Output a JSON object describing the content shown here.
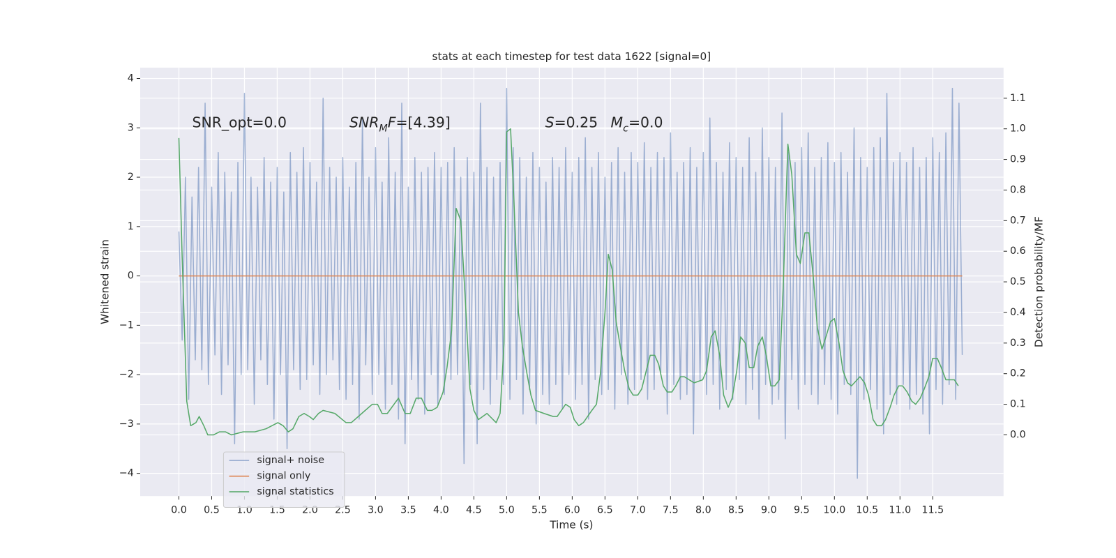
{
  "chart_data": {
    "type": "line",
    "title": "stats at each timestep for test data 1622 [signal=0]",
    "xlabel": "Time (s)",
    "ylabel": "Whitened strain",
    "y2label": "Detection probability/MF",
    "xlim": [
      -0.59,
      12.58
    ],
    "ylim": [
      -4.46,
      4.22
    ],
    "y2lim": [
      -0.2,
      1.2
    ],
    "grid": true,
    "legend": "lower left",
    "xticks": [
      {
        "value": 0,
        "label": "0.0"
      },
      {
        "value": 0.5,
        "label": "0.5"
      },
      {
        "value": 1,
        "label": "1.0"
      },
      {
        "value": 1.5,
        "label": "1.5"
      },
      {
        "value": 2,
        "label": "2.0"
      },
      {
        "value": 2.5,
        "label": "2.5"
      },
      {
        "value": 3,
        "label": "3.0"
      },
      {
        "value": 3.5,
        "label": "3.5"
      },
      {
        "value": 4,
        "label": "4.0"
      },
      {
        "value": 4.5,
        "label": "4.5"
      },
      {
        "value": 5,
        "label": "5.0"
      },
      {
        "value": 5.5,
        "label": "5.5"
      },
      {
        "value": 6,
        "label": "6.0"
      },
      {
        "value": 6.5,
        "label": "6.5"
      },
      {
        "value": 7,
        "label": "7.0"
      },
      {
        "value": 7.5,
        "label": "7.5"
      },
      {
        "value": 8,
        "label": "8.0"
      },
      {
        "value": 8.5,
        "label": "8.5"
      },
      {
        "value": 9,
        "label": "9.0"
      },
      {
        "value": 9.5,
        "label": "9.5"
      },
      {
        "value": 10,
        "label": "10.0"
      },
      {
        "value": 10.5,
        "label": "10.5"
      },
      {
        "value": 11,
        "label": "11.0"
      },
      {
        "value": 11.5,
        "label": "11.5"
      }
    ],
    "yticks": [
      {
        "value": -4,
        "label": "−4"
      },
      {
        "value": -3,
        "label": "−3"
      },
      {
        "value": -2,
        "label": "−2"
      },
      {
        "value": -1,
        "label": "−1"
      },
      0,
      1,
      2,
      3,
      4
    ],
    "y2ticks": [
      {
        "value": 0,
        "label": "0.0"
      },
      {
        "value": 0.1,
        "label": "0.1"
      },
      {
        "value": 0.2,
        "label": "0.2"
      },
      {
        "value": 0.3,
        "label": "0.3"
      },
      {
        "value": 0.4,
        "label": "0.4"
      },
      {
        "value": 0.5,
        "label": "0.5"
      },
      {
        "value": 0.6,
        "label": "0.6"
      },
      {
        "value": 0.7,
        "label": "0.7"
      },
      {
        "value": 0.8,
        "label": "0.8"
      },
      {
        "value": 0.9,
        "label": "0.9"
      },
      {
        "value": 1,
        "label": "1.0"
      },
      {
        "value": 1.1,
        "label": "1.1"
      }
    ],
    "annotations": [
      [
        {
          "text": "SNR_opt=0.0"
        }
      ],
      [
        {
          "text": "SNR",
          "italic": true
        },
        {
          "text": "M",
          "italic": true,
          "sub": true
        },
        {
          "text": "F",
          "italic": true
        },
        {
          "text": "=[4.39]"
        }
      ],
      [
        {
          "text": "S",
          "italic": true
        },
        {
          "text": "=0.25"
        }
      ],
      [
        {
          "text": "M",
          "italic": true
        },
        {
          "text": "c",
          "italic": true,
          "sub": true
        },
        {
          "text": "=0.0"
        }
      ]
    ],
    "series": [
      {
        "name": "signal+ noise",
        "color": "#4c72b0",
        "opacity": 0.5,
        "x": [
          0,
          0.05,
          0.1,
          0.15,
          0.2,
          0.25,
          0.3,
          0.35,
          0.4,
          0.45,
          0.5,
          0.55,
          0.6,
          0.65,
          0.7,
          0.75,
          0.8,
          0.85,
          0.9,
          0.95,
          1,
          1.05,
          1.1,
          1.15,
          1.2,
          1.25,
          1.3,
          1.35,
          1.4,
          1.45,
          1.5,
          1.55,
          1.6,
          1.65,
          1.7,
          1.75,
          1.8,
          1.85,
          1.9,
          1.95,
          2,
          2.05,
          2.1,
          2.15,
          2.2,
          2.25,
          2.3,
          2.35,
          2.4,
          2.45,
          2.5,
          2.55,
          2.6,
          2.65,
          2.7,
          2.75,
          2.8,
          2.85,
          2.9,
          2.95,
          3,
          3.05,
          3.1,
          3.15,
          3.2,
          3.25,
          3.3,
          3.35,
          3.4,
          3.45,
          3.5,
          3.55,
          3.6,
          3.65,
          3.7,
          3.75,
          3.8,
          3.85,
          3.9,
          3.95,
          4,
          4.05,
          4.1,
          4.15,
          4.2,
          4.25,
          4.3,
          4.35,
          4.4,
          4.45,
          4.5,
          4.55,
          4.6,
          4.65,
          4.7,
          4.75,
          4.8,
          4.85,
          4.9,
          4.95,
          5,
          5.05,
          5.1,
          5.15,
          5.2,
          5.25,
          5.3,
          5.35,
          5.4,
          5.45,
          5.5,
          5.55,
          5.6,
          5.65,
          5.7,
          5.75,
          5.8,
          5.85,
          5.9,
          5.95,
          6,
          6.05,
          6.1,
          6.15,
          6.2,
          6.25,
          6.3,
          6.35,
          6.4,
          6.45,
          6.5,
          6.55,
          6.6,
          6.65,
          6.7,
          6.75,
          6.8,
          6.85,
          6.9,
          6.95,
          7,
          7.05,
          7.1,
          7.15,
          7.2,
          7.25,
          7.3,
          7.35,
          7.4,
          7.45,
          7.5,
          7.55,
          7.6,
          7.65,
          7.7,
          7.75,
          7.8,
          7.85,
          7.9,
          7.95,
          8,
          8.05,
          8.1,
          8.15,
          8.2,
          8.25,
          8.3,
          8.35,
          8.4,
          8.45,
          8.5,
          8.55,
          8.6,
          8.65,
          8.7,
          8.75,
          8.8,
          8.85,
          8.9,
          8.95,
          9,
          9.05,
          9.1,
          9.15,
          9.2,
          9.25,
          9.3,
          9.35,
          9.4,
          9.45,
          9.5,
          9.55,
          9.6,
          9.65,
          9.7,
          9.75,
          9.8,
          9.85,
          9.9,
          9.95,
          10,
          10.05,
          10.1,
          10.15,
          10.2,
          10.25,
          10.3,
          10.35,
          10.4,
          10.45,
          10.5,
          10.55,
          10.6,
          10.65,
          10.7,
          10.75,
          10.8,
          10.85,
          10.9,
          10.95,
          11,
          11.05,
          11.1,
          11.15,
          11.2,
          11.25,
          11.3,
          11.35,
          11.4,
          11.45,
          11.5,
          11.55,
          11.6,
          11.65,
          11.7,
          11.75,
          11.8,
          11.85,
          11.9,
          11.95
        ],
        "values": [
          0.9,
          -1.3,
          2.0,
          -2.5,
          1.6,
          -1.7,
          2.2,
          -1.9,
          3.5,
          -2.2,
          1.8,
          -1.6,
          2.5,
          -2.4,
          2.1,
          -1.8,
          1.7,
          -3.4,
          2.3,
          -2.0,
          3.7,
          -1.9,
          2.0,
          -2.6,
          1.8,
          -1.7,
          2.4,
          -2.2,
          1.9,
          -2.9,
          2.2,
          -2.0,
          1.7,
          -3.5,
          2.5,
          -1.9,
          2.1,
          -2.3,
          2.6,
          -2.1,
          2.3,
          -1.8,
          1.9,
          -2.4,
          3.6,
          -2.0,
          2.2,
          -1.7,
          2.0,
          -2.3,
          2.4,
          -2.5,
          1.8,
          -2.2,
          2.3,
          -2.9,
          3.2,
          -1.8,
          2.0,
          -2.4,
          2.6,
          -2.0,
          1.9,
          -2.7,
          2.8,
          -2.2,
          2.1,
          -2.9,
          3.5,
          -3.4,
          1.8,
          -2.1,
          2.4,
          -2.5,
          2.1,
          -2.8,
          2.2,
          -2.0,
          2.5,
          -2.6,
          2.2,
          -2.4,
          2.3,
          -2.1,
          2.6,
          -2.0,
          2.0,
          -3.8,
          2.4,
          -2.2,
          2.1,
          -3.4,
          3.5,
          -2.3,
          2.2,
          -2.6,
          2.0,
          -2.1,
          2.3,
          -2.2,
          3.8,
          -2.5,
          2.6,
          -2.1,
          2.4,
          -2.8,
          2.0,
          -2.3,
          2.5,
          -3.0,
          2.2,
          -2.4,
          1.9,
          -2.6,
          2.4,
          -2.2,
          2.2,
          -2.7,
          2.6,
          -2.0,
          2.1,
          -2.5,
          2.4,
          -2.2,
          2.8,
          -2.9,
          2.2,
          -2.1,
          2.5,
          -2.4,
          2.0,
          -2.3,
          2.3,
          -2.7,
          2.6,
          -2.0,
          2.1,
          -2.6,
          2.5,
          -2.3,
          2.3,
          -2.1,
          2.7,
          -2.5,
          2.2,
          -2.3,
          2.5,
          -2.0,
          2.4,
          -2.8,
          2.9,
          -2.2,
          2.1,
          -2.5,
          2.3,
          -2.4,
          2.6,
          -3.2,
          2.2,
          -2.1,
          2.5,
          -2.4,
          3.2,
          -2.2,
          2.3,
          -2.7,
          2.1,
          -2.3,
          2.7,
          -2.5,
          2.4,
          -2.1,
          2.2,
          -2.6,
          2.8,
          -2.3,
          2.1,
          -2.9,
          3.0,
          -2.2,
          2.4,
          -2.6,
          2.2,
          -2.5,
          3.3,
          -3.3,
          2.5,
          -2.1,
          2.3,
          -2.7,
          2.6,
          -2.2,
          2.9,
          -2.4,
          2.2,
          -2.6,
          2.4,
          -2.2,
          2.7,
          -2.5,
          2.3,
          -2.8,
          2.5,
          -2.2,
          2.1,
          -2.4,
          3.0,
          -4.1,
          2.4,
          -2.5,
          2.2,
          -2.3,
          2.6,
          -2.7,
          2.8,
          -3.2,
          3.7,
          -2.4,
          2.3,
          -2.6,
          2.5,
          -2.2,
          2.3,
          -2.7,
          2.6,
          -2.4,
          2.2,
          -2.8,
          2.4,
          -3.2,
          2.8,
          -2.3,
          2.5,
          -2.6,
          2.9,
          -2.2,
          3.8,
          -2.5,
          3.5,
          -1.6
        ]
      },
      {
        "name": "signal only",
        "color": "#dd8452",
        "x": [
          0,
          11.95
        ],
        "values": [
          0,
          0
        ]
      },
      {
        "name": "signal statistics",
        "color": "#55a868",
        "axis": "y2",
        "x": [
          0,
          0.05,
          0.12,
          0.18,
          0.26,
          0.31,
          0.38,
          0.44,
          0.53,
          0.62,
          0.71,
          0.8,
          0.98,
          1.16,
          1.33,
          1.51,
          1.59,
          1.67,
          1.74,
          1.83,
          1.91,
          1.99,
          2.05,
          2.13,
          2.2,
          2.38,
          2.55,
          2.63,
          2.79,
          2.95,
          3.03,
          3.1,
          3.18,
          3.35,
          3.45,
          3.53,
          3.62,
          3.7,
          3.79,
          3.86,
          3.94,
          4.03,
          4.09,
          4.16,
          4.23,
          4.3,
          4.37,
          4.44,
          4.5,
          4.57,
          4.7,
          4.84,
          4.9,
          4.96,
          5.0,
          5.06,
          5.11,
          5.18,
          5.24,
          5.31,
          5.37,
          5.44,
          5.57,
          5.71,
          5.77,
          5.9,
          5.97,
          6.03,
          6.1,
          6.17,
          6.3,
          6.37,
          6.43,
          6.5,
          6.55,
          6.61,
          6.67,
          6.74,
          6.8,
          6.87,
          6.93,
          7.0,
          7.06,
          7.13,
          7.19,
          7.26,
          7.32,
          7.39,
          7.45,
          7.52,
          7.58,
          7.65,
          7.71,
          7.86,
          7.99,
          8.05,
          8.12,
          8.18,
          8.25,
          8.31,
          8.38,
          8.44,
          8.51,
          8.57,
          8.64,
          8.7,
          8.77,
          8.83,
          8.9,
          8.96,
          9.03,
          9.09,
          9.16,
          9.22,
          9.29,
          9.35,
          9.42,
          9.48,
          9.55,
          9.61,
          9.68,
          9.74,
          9.81,
          9.87,
          9.94,
          10.0,
          10.07,
          10.13,
          10.2,
          10.26,
          10.39,
          10.46,
          10.52,
          10.59,
          10.65,
          10.72,
          10.78,
          10.85,
          10.91,
          10.98,
          11.04,
          11.11,
          11.18,
          11.24,
          11.31,
          11.37,
          11.44,
          11.5,
          11.57,
          11.63,
          11.7,
          11.76,
          11.83,
          11.89
        ],
        "values": [
          0.97,
          0.58,
          0.11,
          0.03,
          0.04,
          0.06,
          0.03,
          0.0,
          0.0,
          0.01,
          0.01,
          0.0,
          0.01,
          0.01,
          0.02,
          0.04,
          0.03,
          0.01,
          0.02,
          0.06,
          0.07,
          0.06,
          0.05,
          0.07,
          0.08,
          0.07,
          0.04,
          0.04,
          0.07,
          0.1,
          0.1,
          0.07,
          0.07,
          0.12,
          0.07,
          0.07,
          0.12,
          0.12,
          0.08,
          0.08,
          0.09,
          0.14,
          0.22,
          0.34,
          0.74,
          0.7,
          0.44,
          0.15,
          0.08,
          0.05,
          0.07,
          0.04,
          0.07,
          0.3,
          0.99,
          1.0,
          0.77,
          0.4,
          0.29,
          0.2,
          0.13,
          0.08,
          0.07,
          0.06,
          0.06,
          0.1,
          0.09,
          0.05,
          0.03,
          0.04,
          0.08,
          0.1,
          0.2,
          0.4,
          0.59,
          0.54,
          0.37,
          0.28,
          0.21,
          0.15,
          0.13,
          0.13,
          0.15,
          0.21,
          0.26,
          0.26,
          0.23,
          0.16,
          0.14,
          0.14,
          0.16,
          0.19,
          0.19,
          0.17,
          0.18,
          0.21,
          0.32,
          0.34,
          0.26,
          0.13,
          0.09,
          0.12,
          0.21,
          0.32,
          0.3,
          0.22,
          0.22,
          0.29,
          0.32,
          0.26,
          0.16,
          0.16,
          0.18,
          0.49,
          0.95,
          0.85,
          0.59,
          0.56,
          0.66,
          0.66,
          0.51,
          0.35,
          0.28,
          0.32,
          0.37,
          0.38,
          0.3,
          0.21,
          0.17,
          0.16,
          0.19,
          0.17,
          0.13,
          0.05,
          0.03,
          0.03,
          0.05,
          0.09,
          0.13,
          0.16,
          0.16,
          0.14,
          0.11,
          0.1,
          0.12,
          0.15,
          0.19,
          0.25,
          0.25,
          0.22,
          0.18,
          0.18,
          0.18,
          0.16
        ]
      }
    ]
  }
}
